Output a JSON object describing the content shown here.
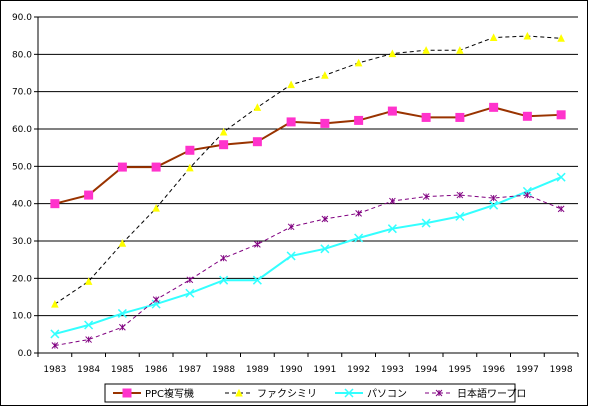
{
  "chart_data": {
    "type": "line",
    "x": [
      "1983",
      "1984",
      "1985",
      "1986",
      "1987",
      "1988",
      "1989",
      "1990",
      "1991",
      "1992",
      "1993",
      "1994",
      "1995",
      "1996",
      "1997",
      "1998"
    ],
    "ylim": [
      0,
      90
    ],
    "yticks": [
      "0.0",
      "10.0",
      "20.0",
      "30.0",
      "40.0",
      "50.0",
      "60.0",
      "70.0",
      "80.0",
      "90.0"
    ],
    "grid": true,
    "legend_position": "bottom",
    "series": [
      {
        "name": "PPC複写機",
        "color": "#993300",
        "marker": "square",
        "marker_color": "#ff33cc",
        "dash": false,
        "values": [
          40.0,
          42.3,
          49.8,
          49.8,
          54.3,
          55.8,
          56.6,
          61.9,
          61.5,
          62.3,
          64.8,
          63.1,
          63.1,
          65.8,
          63.4,
          63.8
        ]
      },
      {
        "name": "ファクシミリ",
        "color": "#000000",
        "marker": "triangle",
        "marker_color": "#ffff00",
        "dash": true,
        "values": [
          13.1,
          19.2,
          29.4,
          38.8,
          49.6,
          59.2,
          65.8,
          71.9,
          74.4,
          77.7,
          80.2,
          81.1,
          81.1,
          84.5,
          84.9,
          84.3
        ]
      },
      {
        "name": "パソコン",
        "color": "#33ffff",
        "marker": "x",
        "marker_color": "#33ffff",
        "dash": false,
        "values": [
          5.1,
          7.5,
          10.6,
          13.1,
          16.0,
          19.5,
          19.5,
          26.0,
          27.9,
          30.8,
          33.3,
          34.8,
          36.6,
          39.6,
          43.3,
          47.1
        ]
      },
      {
        "name": "日本語ワープロ",
        "color": "#800080",
        "marker": "star",
        "marker_color": "#800080",
        "dash": true,
        "values": [
          2.0,
          3.6,
          6.9,
          14.3,
          19.6,
          25.4,
          29.1,
          33.8,
          35.9,
          37.4,
          40.7,
          41.9,
          42.3,
          41.5,
          42.3,
          38.6
        ]
      }
    ]
  }
}
